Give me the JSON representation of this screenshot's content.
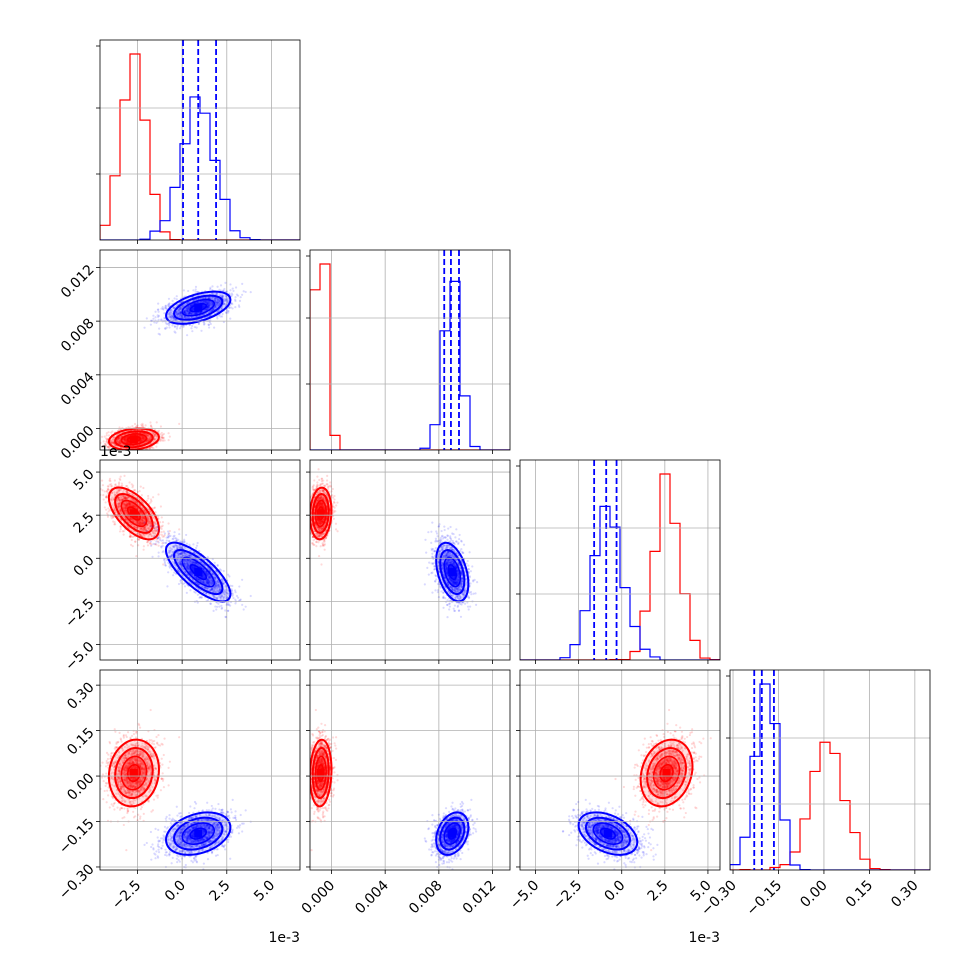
{
  "chart_data": {
    "type": "corner",
    "parameters": [
      {
        "range": [
          -4.6,
          6.6
        ],
        "ticks": [
          -2.5,
          0.0,
          2.5,
          5.0
        ],
        "tick_labels": [
          "−2.5",
          "0.0",
          "2.5",
          "5.0"
        ],
        "offset_label": "1e-3"
      },
      {
        "range": [
          -0.0016,
          0.0133
        ],
        "ticks": [
          0.0,
          0.004,
          0.008,
          0.012
        ],
        "tick_labels": [
          "0.000",
          "0.004",
          "0.008",
          "0.012"
        ],
        "offset_label": ""
      },
      {
        "range": [
          -5.9,
          5.7
        ],
        "ticks": [
          -5.0,
          -2.5,
          0.0,
          2.5,
          5.0
        ],
        "tick_labels": [
          "−5.0",
          "−2.5",
          "0.0",
          "2.5",
          "5.0"
        ],
        "offset_label": "1e-3"
      },
      {
        "range": [
          -0.31,
          0.35
        ],
        "ticks": [
          -0.3,
          -0.15,
          0.0,
          0.15,
          0.3
        ],
        "tick_labels": [
          "−0.30",
          "−0.15",
          "0.00",
          "0.15",
          "0.30"
        ],
        "offset_label": ""
      }
    ],
    "series": [
      {
        "color": "#ff0000",
        "means": [
          -2.7,
          -0.0008,
          2.6,
          0.01
        ],
        "stds": [
          0.7,
          0.0004,
          0.75,
          0.055
        ],
        "corr": [
          [
            1,
            0.2,
            -0.6,
            0.1
          ],
          [
            0.2,
            1,
            0.1,
            0.1
          ],
          [
            -0.6,
            0.1,
            1,
            0.2
          ],
          [
            0.1,
            0.1,
            0.2,
            1
          ]
        ]
      },
      {
        "color": "#0000ff",
        "means": [
          0.9,
          0.009,
          -0.8,
          -0.19
        ],
        "stds": [
          0.9,
          0.0006,
          0.85,
          0.035
        ],
        "corr": [
          [
            1,
            0.5,
            -0.75,
            0.3
          ],
          [
            0.5,
            1,
            -0.4,
            0.3
          ],
          [
            -0.75,
            -0.4,
            1,
            -0.4
          ],
          [
            0.3,
            0.3,
            -0.4,
            1
          ]
        ]
      }
    ],
    "quantile_lines": {
      "color": "#0000ff",
      "values": [
        [
          0.05,
          0.9,
          1.9
        ],
        [
          0.0084,
          0.0089,
          0.0095
        ],
        [
          -1.6,
          -0.9,
          -0.3
        ],
        [
          -0.23,
          -0.205,
          -0.165
        ]
      ]
    },
    "grid": true
  }
}
